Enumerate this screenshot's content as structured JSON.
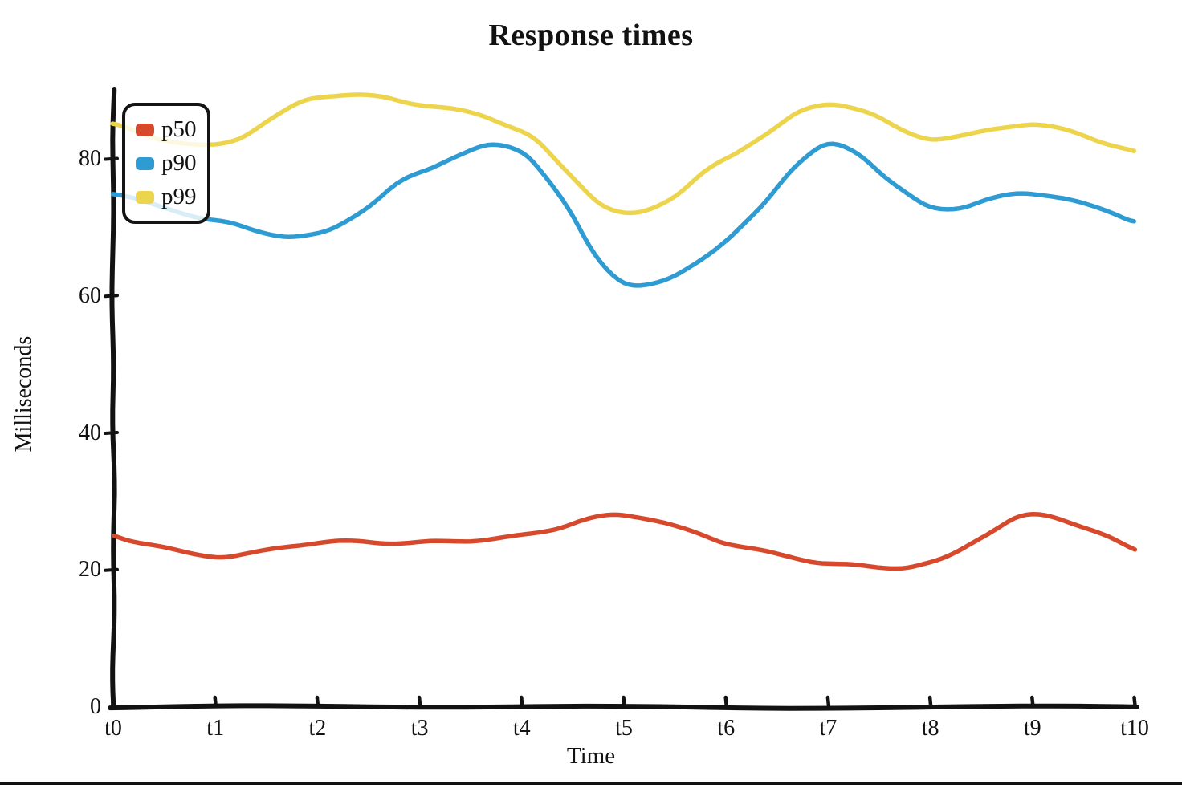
{
  "chart_data": {
    "type": "line",
    "style": "hand-drawn-xkcd",
    "title": "Response times",
    "xlabel": "Time",
    "ylabel": "Milliseconds",
    "x_categories": [
      "t0",
      "t1",
      "t2",
      "t3",
      "t4",
      "t5",
      "t6",
      "t7",
      "t8",
      "t9",
      "t10"
    ],
    "y_ticks": [
      0,
      20,
      40,
      60,
      80
    ],
    "ylim": [
      0,
      95
    ],
    "grid": false,
    "legend_position": "upper-left",
    "axis_color": "#121212",
    "series": [
      {
        "name": "p50",
        "color": "#d6492c",
        "values": [
          25,
          22,
          24,
          24,
          25,
          28,
          24,
          21,
          21,
          28,
          23
        ]
      },
      {
        "name": "p90",
        "color": "#2e9bd3",
        "values": [
          75,
          71,
          69,
          78,
          81,
          62,
          68,
          82,
          73,
          75,
          71
        ]
      },
      {
        "name": "p99",
        "color": "#edd44d",
        "values": [
          85,
          82,
          89,
          88,
          84,
          72,
          80,
          88,
          83,
          85,
          81
        ]
      }
    ]
  }
}
